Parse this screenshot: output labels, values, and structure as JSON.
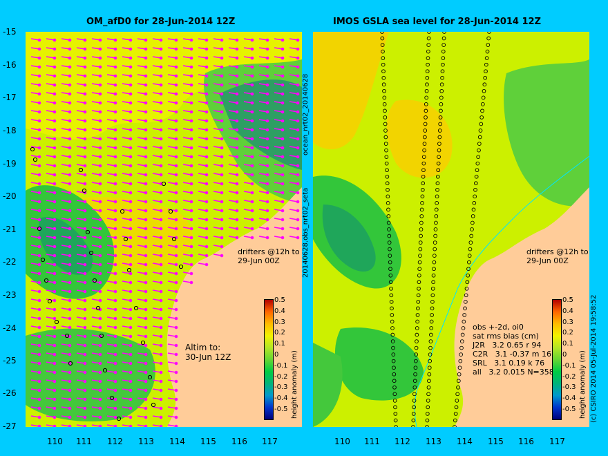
{
  "panels": {
    "left": {
      "title": "OM_afD0 for 28-Jun-2014 12Z"
    },
    "right": {
      "title": "IMOS GSLA sea level  for 28-Jun-2014 12Z"
    }
  },
  "axes": {
    "y_ticks": [
      "-15",
      "-16",
      "-17",
      "-18",
      "-19",
      "-20",
      "-21",
      "-22",
      "-23",
      "-24",
      "-25",
      "-26",
      "-27"
    ],
    "x_ticks": [
      "110",
      "111",
      "112",
      "113",
      "114",
      "115",
      "116",
      "117"
    ],
    "lon_range": [
      109.1,
      118.0
    ],
    "lat_range": [
      -27,
      -15
    ]
  },
  "annotations": {
    "drifters_line1": "drifters @12h to",
    "drifters_line2": "29-Jun 00Z",
    "altim_line1": "Altim to:",
    "altim_line2": "30-Jun 12Z",
    "side_top": "ocean_nrt02_20140628",
    "side_bottom": "20140628.obs_nrt02_seta",
    "obs_header1": "obs +-2d, oi0",
    "obs_header2": "sat rms bias (cm)",
    "obs_rows": [
      "J2R   3.2 0.65 r 94",
      "C2R   3.1 -0.37 m 16",
      "SRL   3.1 0.19 k 76",
      "all   3.2 0.015 N=358"
    ],
    "credit": "(c) CSIRO 2014   05-Jul-2014 19:58:52"
  },
  "colorbar": {
    "label": "height anomaly (m)",
    "ticks": [
      "0.5",
      "0.4",
      "0.3",
      "0.2",
      "0.1",
      "0",
      "-0.1",
      "-0.2",
      "-0.3",
      "-0.4",
      "-0.5"
    ],
    "colors": [
      "#00007a",
      "#0033cc",
      "#0099cc",
      "#00b37a",
      "#00cc44",
      "#66d633",
      "#b3e626",
      "#f2f200",
      "#ffbb00",
      "#ff6600",
      "#b30000"
    ]
  },
  "colors": {
    "background": "#00ccff",
    "land": "#ffcc99",
    "vector": "#ff00ff",
    "sea_base": "#ccf000"
  }
}
